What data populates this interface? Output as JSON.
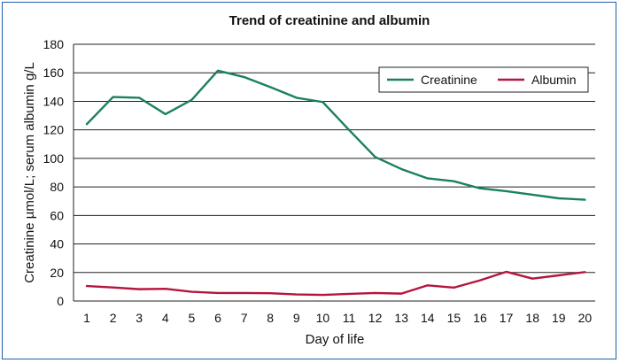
{
  "chart_data": {
    "type": "line",
    "title": "Trend of creatinine and albumin",
    "xlabel": "Day of life",
    "ylabel": "Creatinine µmol/L; serum albumin g/L",
    "x": [
      1,
      2,
      3,
      4,
      5,
      6,
      7,
      8,
      9,
      10,
      11,
      12,
      13,
      14,
      15,
      16,
      17,
      18,
      19,
      20
    ],
    "ylim": [
      0,
      180
    ],
    "yticks": [
      0,
      20,
      40,
      60,
      80,
      100,
      120,
      140,
      160,
      180
    ],
    "grid": true,
    "legend_position": "top-right",
    "series": [
      {
        "name": "Creatinine",
        "color": "#1a8060",
        "values": [
          124,
          143,
          142.5,
          131,
          141,
          161.5,
          157,
          150,
          142.5,
          139.5,
          120,
          101,
          92.5,
          86,
          84,
          79,
          77,
          74.5,
          72,
          71
        ]
      },
      {
        "name": "Albumin",
        "color": "#b5153f",
        "values": [
          10.5,
          9.5,
          8.3,
          8.6,
          6.5,
          5.6,
          5.6,
          5.5,
          4.6,
          4.3,
          5.0,
          5.6,
          5.2,
          11.0,
          9.4,
          14.5,
          20.5,
          15.7,
          18.0,
          20.3
        ]
      }
    ]
  }
}
